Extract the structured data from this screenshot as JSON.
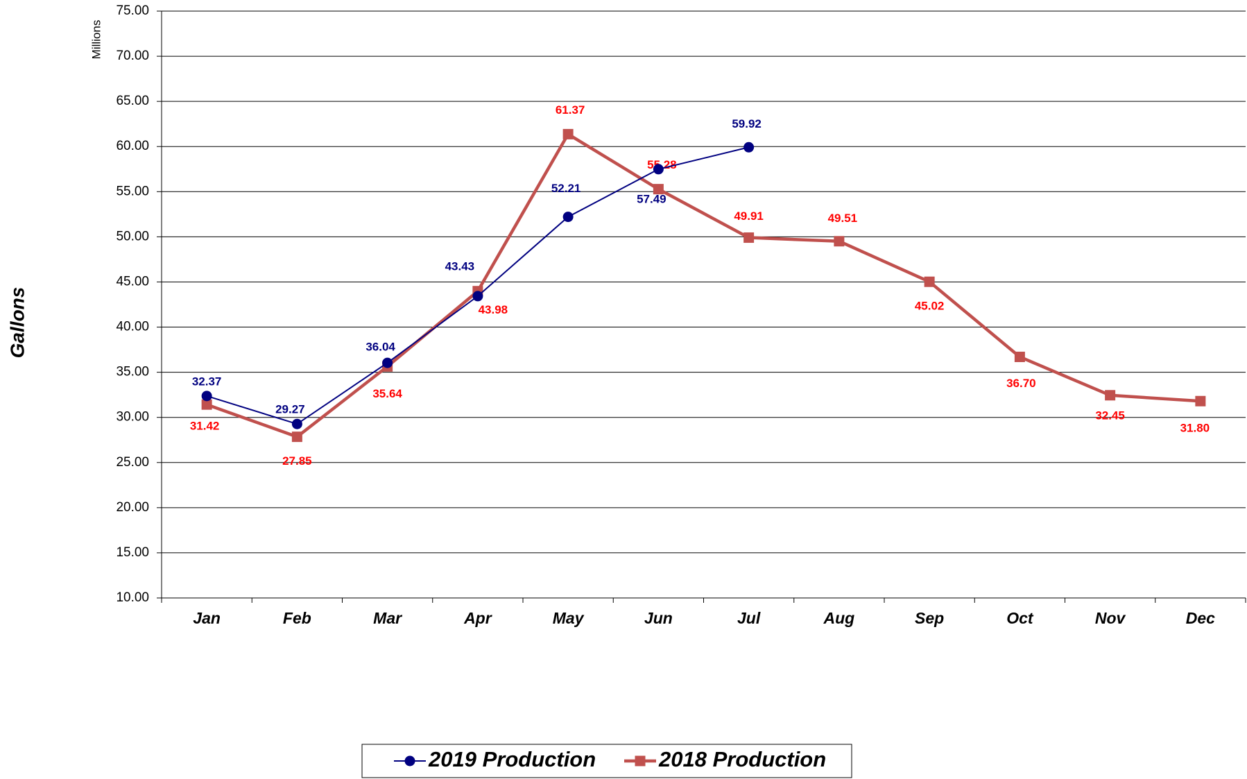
{
  "chart_data": {
    "type": "line",
    "y_label": "Gallons",
    "y_unit_label": "Millions",
    "categories": [
      "Jan",
      "Feb",
      "Mar",
      "Apr",
      "May",
      "Jun",
      "Jul",
      "Aug",
      "Sep",
      "Oct",
      "Nov",
      "Dec"
    ],
    "series": [
      {
        "name": "2019 Production",
        "color": "#000080",
        "marker": "circle",
        "values": [
          32.37,
          29.27,
          36.04,
          43.43,
          52.21,
          57.49,
          59.92,
          null,
          null,
          null,
          null,
          null
        ],
        "value_labels": [
          "32.37",
          "29.27",
          "36.04",
          "43.43",
          "52.21",
          "57.49",
          "59.92",
          null,
          null,
          null,
          null,
          null
        ],
        "label_color": "#000080"
      },
      {
        "name": "2018 Production",
        "color": "#c0504d",
        "marker": "square",
        "values": [
          31.42,
          27.85,
          35.64,
          43.98,
          61.37,
          55.28,
          49.91,
          49.51,
          45.02,
          36.7,
          32.45,
          31.8
        ],
        "value_labels": [
          "31.42",
          "27.85",
          "35.64",
          "43.98",
          "61.37",
          "55.28",
          "49.91",
          "49.51",
          "45.02",
          "36.70",
          "32.45",
          "31.80"
        ],
        "label_color": "#ff0000"
      }
    ],
    "ylim": [
      10,
      75
    ],
    "yticks": [
      {
        "value": 10,
        "label": "10.00"
      },
      {
        "value": 15,
        "label": "15.00"
      },
      {
        "value": 20,
        "label": "20.00"
      },
      {
        "value": 25,
        "label": "25.00"
      },
      {
        "value": 30,
        "label": "30.00"
      },
      {
        "value": 35,
        "label": "35.00"
      },
      {
        "value": 40,
        "label": "40.00"
      },
      {
        "value": 45,
        "label": "45.00"
      },
      {
        "value": 50,
        "label": "50.00"
      },
      {
        "value": 55,
        "label": "55.00"
      },
      {
        "value": 60,
        "label": "60.00"
      },
      {
        "value": 65,
        "label": "65.00"
      },
      {
        "value": 70,
        "label": "70.00"
      },
      {
        "value": 75,
        "label": "75.00"
      }
    ],
    "grid": true,
    "legend": "bottom"
  }
}
